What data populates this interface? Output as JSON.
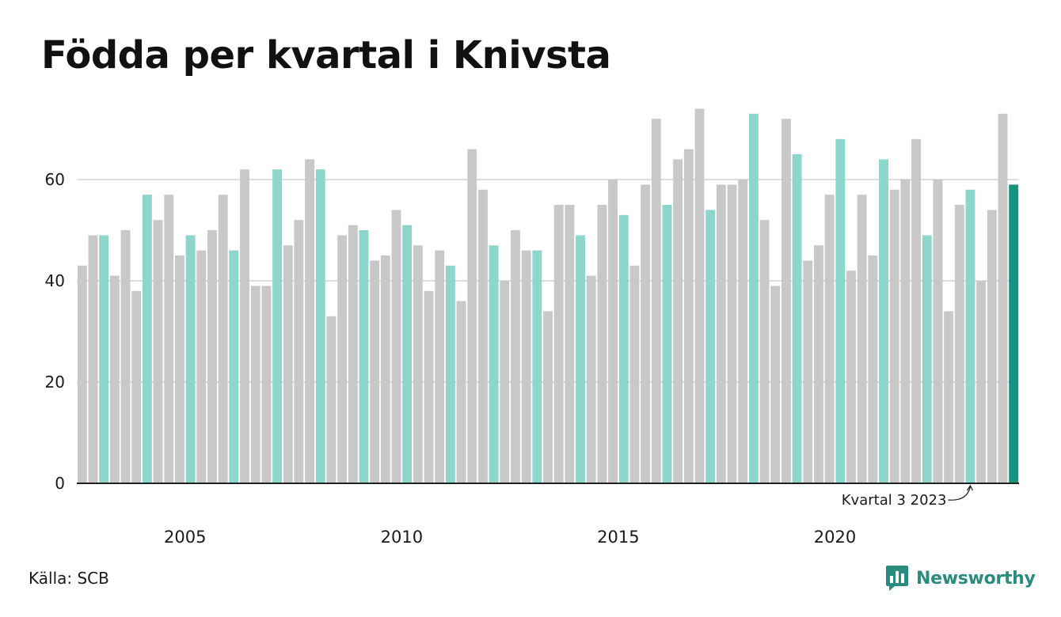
{
  "title": "Födda per kvartal i Knivsta",
  "source": "Källa: SCB",
  "brand": {
    "name": "Newsworthy",
    "icon": "newsworthy-logo-icon"
  },
  "colors": {
    "default_bar": "#c8c8c8",
    "q3_bar": "#8dd6cc",
    "latest_bar": "#1a9080",
    "axis": "#222222",
    "grid": "#dddddd",
    "brand": "#2a8c7e"
  },
  "chart_data": {
    "type": "bar",
    "start": {
      "year": 2003,
      "quarter": 1
    },
    "values": [
      43,
      49,
      49,
      41,
      50,
      38,
      57,
      52,
      57,
      45,
      49,
      46,
      50,
      57,
      46,
      62,
      39,
      39,
      62,
      47,
      52,
      64,
      62,
      33,
      49,
      51,
      50,
      44,
      45,
      54,
      51,
      47,
      38,
      46,
      43,
      36,
      66,
      58,
      47,
      40,
      50,
      46,
      46,
      34,
      55,
      55,
      49,
      41,
      55,
      60,
      53,
      43,
      59,
      72,
      55,
      64,
      66,
      74,
      54,
      59,
      59,
      60,
      73,
      52,
      39,
      72,
      65,
      44,
      47,
      57,
      68,
      42,
      57,
      45,
      64,
      58,
      60,
      68,
      49,
      60,
      34,
      55,
      58,
      40,
      54,
      73,
      59
    ],
    "y_ticks": [
      0,
      20,
      40,
      60
    ],
    "x_ticks": [
      "2005",
      "2010",
      "2015",
      "2020"
    ],
    "ylim": [
      0,
      75
    ],
    "highlight": "third quarter of each year",
    "annotation": "Kvartal 3 2023",
    "grid": true
  }
}
